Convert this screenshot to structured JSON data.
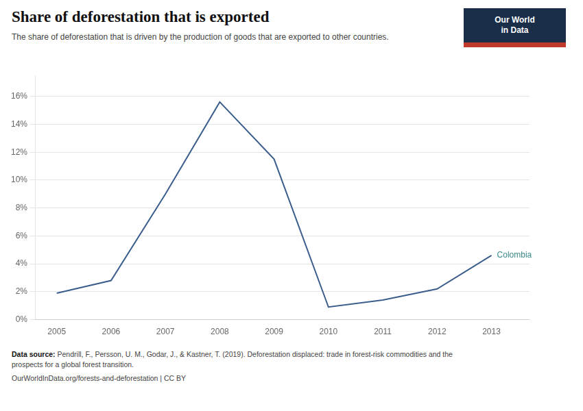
{
  "chart_data": {
    "type": "line",
    "title": "Share of deforestation that is exported",
    "subtitle": "The share of deforestation that is driven by the production of goods that are exported to other countries.",
    "x": [
      2005,
      2006,
      2007,
      2008,
      2009,
      2010,
      2011,
      2012,
      2013
    ],
    "values": [
      0.019,
      0.028,
      0.09,
      0.156,
      0.115,
      0.009,
      0.014,
      0.022,
      0.046
    ],
    "color": "#3a5d8c",
    "xlim": [
      2004.6,
      2013.7
    ],
    "xticks": [
      2005,
      2006,
      2007,
      2008,
      2009,
      2010,
      2011,
      2012,
      2013
    ],
    "ylim": [
      0,
      0.175
    ],
    "yticks": [
      {
        "value": 0,
        "label": "0%"
      },
      {
        "value": 0.02,
        "label": "2%"
      },
      {
        "value": 0.04,
        "label": "4%"
      },
      {
        "value": 0.06,
        "label": "6%"
      },
      {
        "value": 0.08,
        "label": "8%"
      },
      {
        "value": 0.1,
        "label": "10%"
      },
      {
        "value": 0.12,
        "label": "12%"
      },
      {
        "value": 0.14,
        "label": "14%"
      },
      {
        "value": 0.16,
        "label": "16%"
      }
    ],
    "grid": true,
    "annotations": [
      {
        "text": "Colombia",
        "x": 2013,
        "y": 0.046,
        "color": "#3a8a8a"
      }
    ],
    "source_label": "Data source:",
    "source": "Pendrill, F., Persson, U. M., Godar, J., & Kastner, T. (2019). Deforestation displaced: trade in forest-risk commodities and the\nprospects for a global forest transition.",
    "url": "OurWorldInData.org/forests-and-deforestation | CC BY",
    "logo": {
      "text": [
        "Our World",
        "in Data"
      ],
      "colors": [
        "#1a2e4a",
        "#c0392b"
      ]
    }
  }
}
